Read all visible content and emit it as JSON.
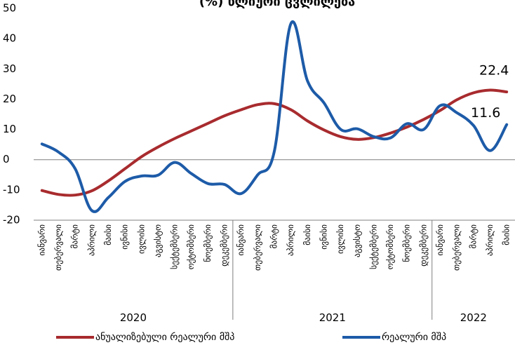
{
  "chart_data": {
    "type": "line",
    "title": "(%) წლიური ცვლილება",
    "ylim": [
      -20,
      50
    ],
    "yticks": [
      -20,
      -10,
      0,
      10,
      20,
      30,
      40,
      50
    ],
    "categories": [
      "იანვარი",
      "თებერვალი",
      "მარტი",
      "აპრილი",
      "მაისი",
      "ივნისი",
      "ივლისი",
      "აგვისტო",
      "სექტემბერი",
      "ოქტომბერი",
      "ნოემბერი",
      "დეკემბერი",
      "იანვარი",
      "თებერვალი",
      "მარტი",
      "აპრილი",
      "მაისი",
      "ივნისი",
      "ივლისი",
      "აგვისტო",
      "სექტემბერი",
      "ოქტომბერი",
      "ნოემბერი",
      "დეკემბერი",
      "იანვარი",
      "თებერვალი",
      "მარტი",
      "აპრილი",
      "მაისი"
    ],
    "year_groups": [
      {
        "label": "2020",
        "start": 0,
        "end": 11
      },
      {
        "label": "2021",
        "start": 12,
        "end": 23
      },
      {
        "label": "2022",
        "start": 24,
        "end": 28
      }
    ],
    "series": [
      {
        "name": "ანუალიზებული რეალური მშპ",
        "color": "#a82b2e",
        "values": [
          -10.2,
          -11.5,
          -11.7,
          -10.3,
          -7,
          -3,
          1,
          4.2,
          7,
          9.5,
          12,
          14.5,
          16.5,
          18.2,
          18.5,
          16.5,
          12.8,
          9.8,
          7.6,
          6.7,
          7.3,
          8.8,
          10.8,
          13.3,
          16.3,
          19.8,
          22.1,
          23,
          22.4
        ]
      },
      {
        "name": "რეალური მშპ",
        "color": "#1d5ba8",
        "values": [
          5.2,
          2.5,
          -3,
          -16.8,
          -12.5,
          -7.2,
          -5.4,
          -5.1,
          -0.9,
          -4.6,
          -7.9,
          -8.2,
          -11.2,
          -5,
          2.8,
          45,
          26,
          18.7,
          10,
          10.2,
          7.6,
          7.2,
          11.9,
          10,
          17.9,
          15.5,
          11.3,
          3,
          11.6
        ]
      }
    ],
    "annotations": [
      {
        "text": "22.4",
        "series": 0,
        "index": 28
      },
      {
        "text": "11.6",
        "series": 1,
        "index": 28
      }
    ],
    "legend": "bottom"
  }
}
